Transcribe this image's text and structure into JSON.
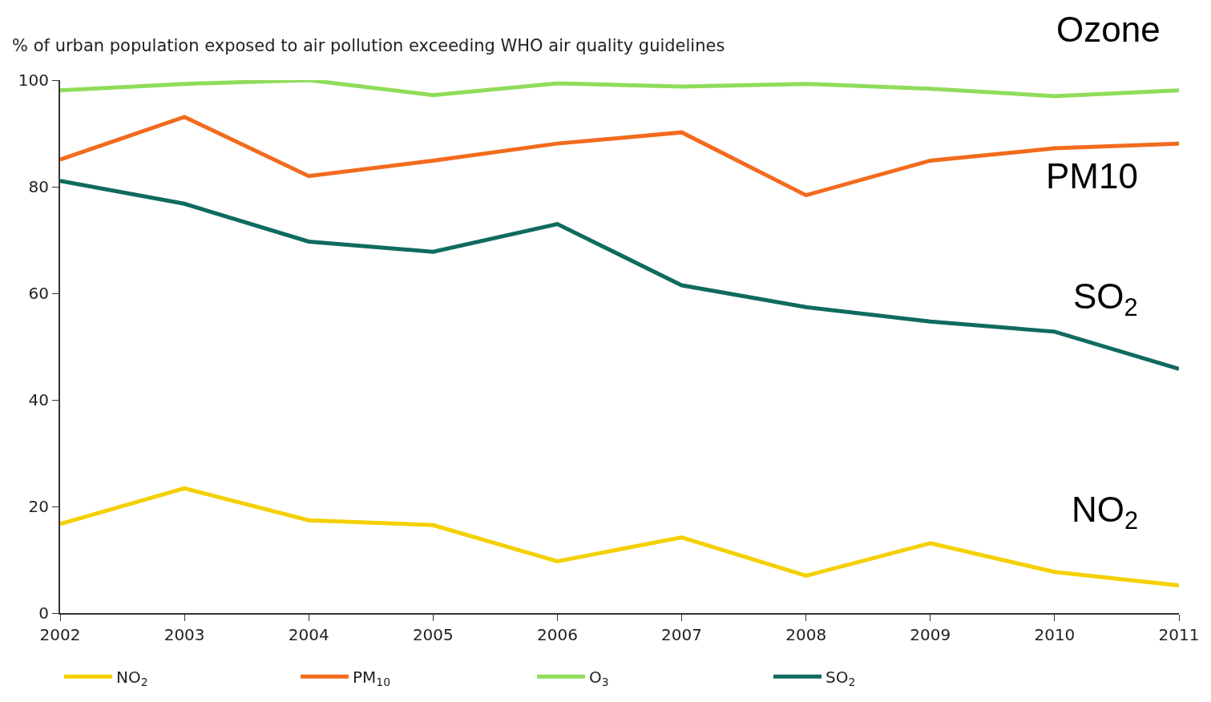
{
  "chart_data": {
    "type": "line",
    "title": "% of urban population exposed to air pollution exceeding WHO air quality guidelines",
    "x": [
      2002,
      2003,
      2004,
      2005,
      2006,
      2007,
      2008,
      2009,
      2010,
      2011
    ],
    "series": [
      {
        "name": "NO$_{2}$",
        "color": "#f5d000",
        "values": [
          16.7,
          23.4,
          17.4,
          16.5,
          9.7,
          14.2,
          7.0,
          13.1,
          7.7,
          5.2
        ]
      },
      {
        "name": "PM$_{10}$",
        "color": "#f26b1d",
        "values": [
          85.1,
          93.1,
          82.0,
          84.9,
          88.1,
          90.2,
          78.4,
          84.9,
          87.2,
          88.1
        ]
      },
      {
        "name": "O$_{3}$",
        "color": "#8fdc5a",
        "values": [
          98.1,
          99.3,
          100,
          97.2,
          99.4,
          98.8,
          99.3,
          98.4,
          97.0,
          98.1
        ]
      },
      {
        "name": "SO$_{2}$",
        "color": "#0f6b5f",
        "values": [
          81.1,
          76.8,
          69.7,
          67.8,
          73.0,
          61.5,
          57.4,
          54.7,
          52.8,
          45.8
        ]
      }
    ],
    "annotations": [
      "Ozone",
      "PM10",
      "SO$_{2}$",
      "NO$_{2}$"
    ],
    "xlim": [
      2002,
      2011
    ],
    "xticks": [
      2002,
      2003,
      2004,
      2005,
      2006,
      2007,
      2008,
      2009,
      2010,
      2011
    ],
    "ylim": [
      0,
      100
    ],
    "yticks": [
      0,
      20,
      40,
      60,
      80,
      100
    ],
    "grid": false,
    "legend": "bottom",
    "marker": "none",
    "line_style": "solid"
  }
}
